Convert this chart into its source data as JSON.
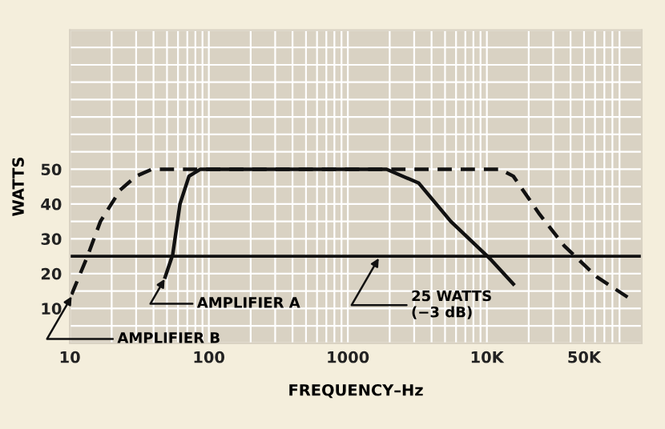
{
  "chart_data": {
    "type": "line",
    "xlabel": "FREQUENCY–Hz",
    "ylabel": "WATTS",
    "log": "x",
    "xlim": [
      10,
      130000
    ],
    "ylim": [
      0,
      90
    ],
    "xticks": [
      10,
      100,
      1000,
      {
        "value": 10000,
        "label": "10K"
      },
      {
        "value": 50000,
        "label": "50K"
      }
    ],
    "yticks": [
      10,
      20,
      30,
      40,
      50
    ],
    "grid": true,
    "legend": false,
    "series": [
      {
        "color": "#111111",
        "line_style": "solid",
        "x": [
          48.5,
          55,
          62,
          72,
          87,
          1900,
          3240,
          5500,
          10700,
          15500
        ],
        "values": [
          19,
          25.5,
          40,
          48,
          50,
          50,
          46,
          35,
          24,
          17
        ]
      },
      {
        "color": "#111111",
        "line_style": "dashed",
        "x": [
          10.3,
          13.4,
          16.6,
          23,
          30,
          39,
          12400,
          15500,
          24000,
          36000,
          62000,
          105000
        ],
        "values": [
          14,
          25,
          35,
          44,
          48,
          50,
          50,
          48,
          37,
          28,
          19,
          13
        ]
      }
    ],
    "ref_lines": [
      {
        "axis": "y",
        "value": 25,
        "color": "#111111"
      }
    ],
    "annotations": [
      {
        "text": "AMPLIFIER A",
        "x": 49,
        "y": 19
      },
      {
        "text": "AMPLIFIER B",
        "x": 10.5,
        "y": 14
      },
      {
        "text": "25 WATTS\n(−3 dB)",
        "x": 1700,
        "y": 25
      }
    ]
  }
}
